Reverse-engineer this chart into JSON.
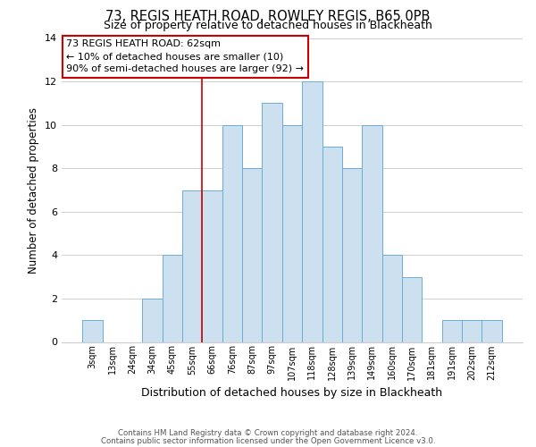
{
  "title_line1": "73, REGIS HEATH ROAD, ROWLEY REGIS, B65 0PB",
  "title_line2": "Size of property relative to detached houses in Blackheath",
  "xlabel": "Distribution of detached houses by size in Blackheath",
  "ylabel": "Number of detached properties",
  "bin_labels": [
    "3sqm",
    "13sqm",
    "24sqm",
    "34sqm",
    "45sqm",
    "55sqm",
    "66sqm",
    "76sqm",
    "87sqm",
    "97sqm",
    "107sqm",
    "118sqm",
    "128sqm",
    "139sqm",
    "149sqm",
    "160sqm",
    "170sqm",
    "181sqm",
    "191sqm",
    "202sqm",
    "212sqm"
  ],
  "bar_heights": [
    1,
    0,
    0,
    2,
    4,
    7,
    7,
    10,
    8,
    11,
    10,
    12,
    9,
    8,
    10,
    4,
    3,
    0,
    1,
    1,
    1
  ],
  "bar_color": "#cce0f0",
  "bar_edgecolor": "#6aaed6",
  "ylim": [
    0,
    14
  ],
  "yticks": [
    0,
    2,
    4,
    6,
    8,
    10,
    12,
    14
  ],
  "annotation_title": "73 REGIS HEATH ROAD: 62sqm",
  "annotation_line2": "← 10% of detached houses are smaller (10)",
  "annotation_line3": "90% of semi-detached houses are larger (92) →",
  "annotation_box_color": "#ffffff",
  "annotation_box_edgecolor": "#cc0000",
  "vline_x_index": 5.5,
  "vline_color": "#cc0000",
  "footer_line1": "Contains HM Land Registry data © Crown copyright and database right 2024.",
  "footer_line2": "Contains public sector information licensed under the Open Government Licence v3.0.",
  "background_color": "#ffffff",
  "grid_color": "#c8c8c8"
}
